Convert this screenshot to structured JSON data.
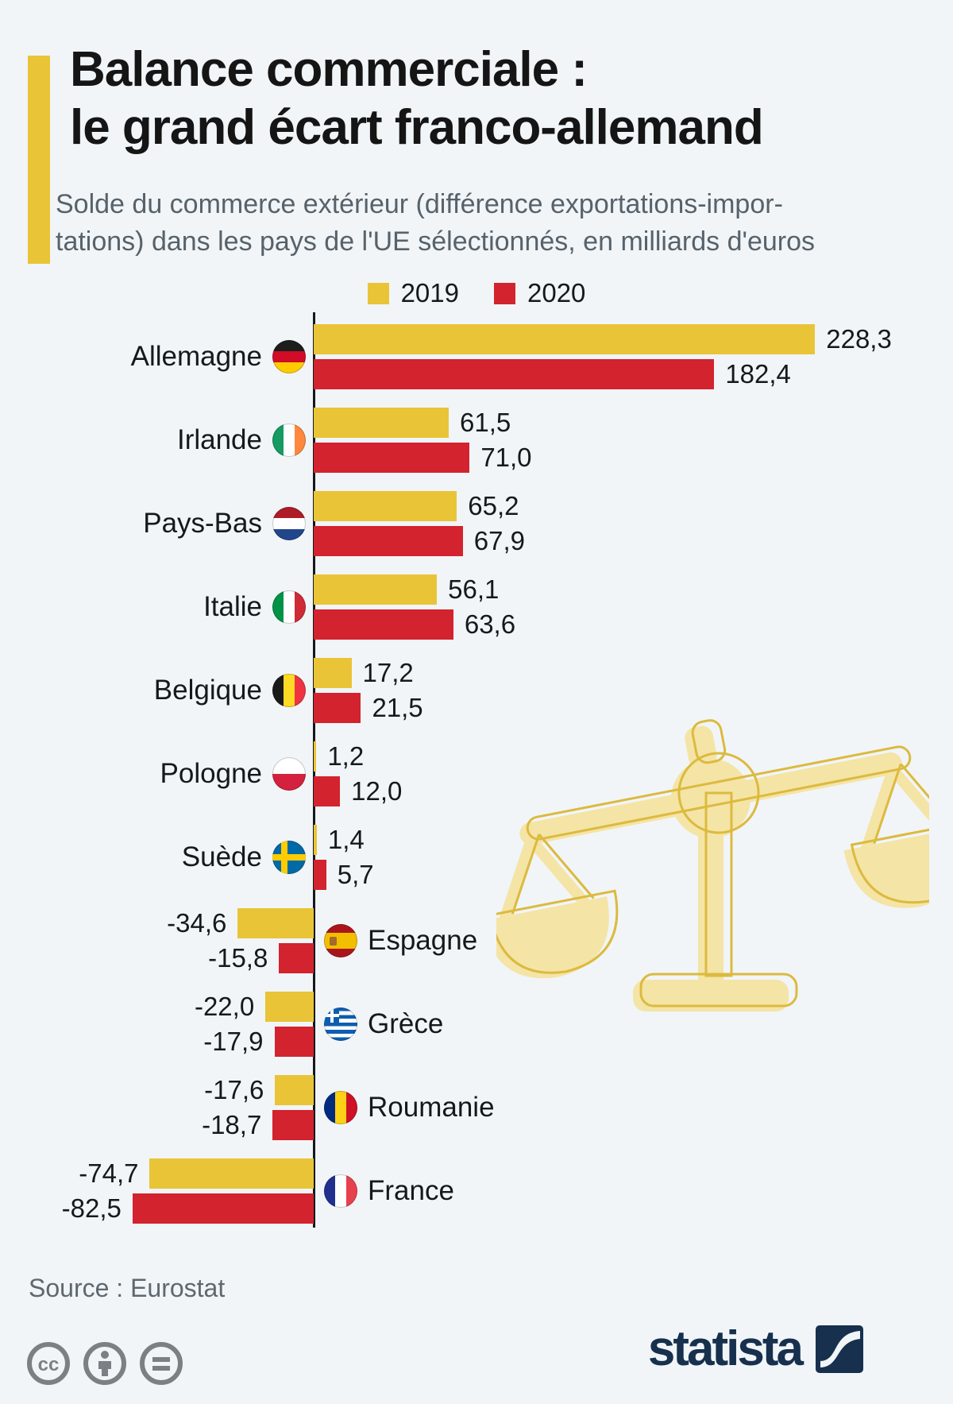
{
  "header": {
    "title_line1": "Balance commerciale :",
    "title_line2": "le grand écart franco-allemand",
    "subtitle_line1": "Solde du commerce extérieur (différence exportations-impor-",
    "subtitle_line2": "tations) dans les pays de l'UE sélectionnés, en milliards d'euros"
  },
  "legend": {
    "items": [
      {
        "label": "2019",
        "color": "#e9c437"
      },
      {
        "label": "2020",
        "color": "#d2232e"
      }
    ]
  },
  "chart_data": {
    "type": "bar",
    "orientation": "horizontal",
    "title": "Balance commerciale : le grand écart franco-allemand",
    "unit": "milliards d'euros",
    "categories": [
      "Allemagne",
      "Irlande",
      "Pays-Bas",
      "Italie",
      "Belgique",
      "Pologne",
      "Suède",
      "Espagne",
      "Grèce",
      "Roumanie",
      "France"
    ],
    "flags": [
      "de",
      "ie",
      "nl",
      "it",
      "be",
      "pl",
      "se",
      "es",
      "gr",
      "ro",
      "fr"
    ],
    "series": [
      {
        "name": "2019",
        "color": "#e9c437",
        "values": [
          228.3,
          61.5,
          65.2,
          56.1,
          17.2,
          1.2,
          1.4,
          -34.6,
          -22.0,
          -17.6,
          -74.7
        ]
      },
      {
        "name": "2020",
        "color": "#d2232e",
        "values": [
          182.4,
          71.0,
          67.9,
          63.6,
          21.5,
          12.0,
          5.7,
          -15.8,
          -17.9,
          -18.7,
          -82.5
        ]
      }
    ],
    "value_label_format": "decimal-comma-1",
    "zero_axis": true,
    "legend_position": "top-center",
    "grid": false
  },
  "watermark": "balance-scale",
  "footer": {
    "source": "Source : Eurostat",
    "license_icons": [
      "cc-icon",
      "attribution-icon",
      "no-derivatives-icon"
    ],
    "brand": "statista"
  },
  "colors": {
    "background": "#f1f5f8",
    "accent": "#e9c437",
    "bar_2019": "#e9c437",
    "bar_2020": "#d2232e",
    "title": "#151515",
    "subtitle": "#57626a",
    "axis": "#16191b",
    "source_text": "#5e686e",
    "license_gray": "#7b8085",
    "brand_navy": "#16304d",
    "watermark_fill": "#f4e4a6",
    "watermark_stroke": "#dcba3e"
  }
}
